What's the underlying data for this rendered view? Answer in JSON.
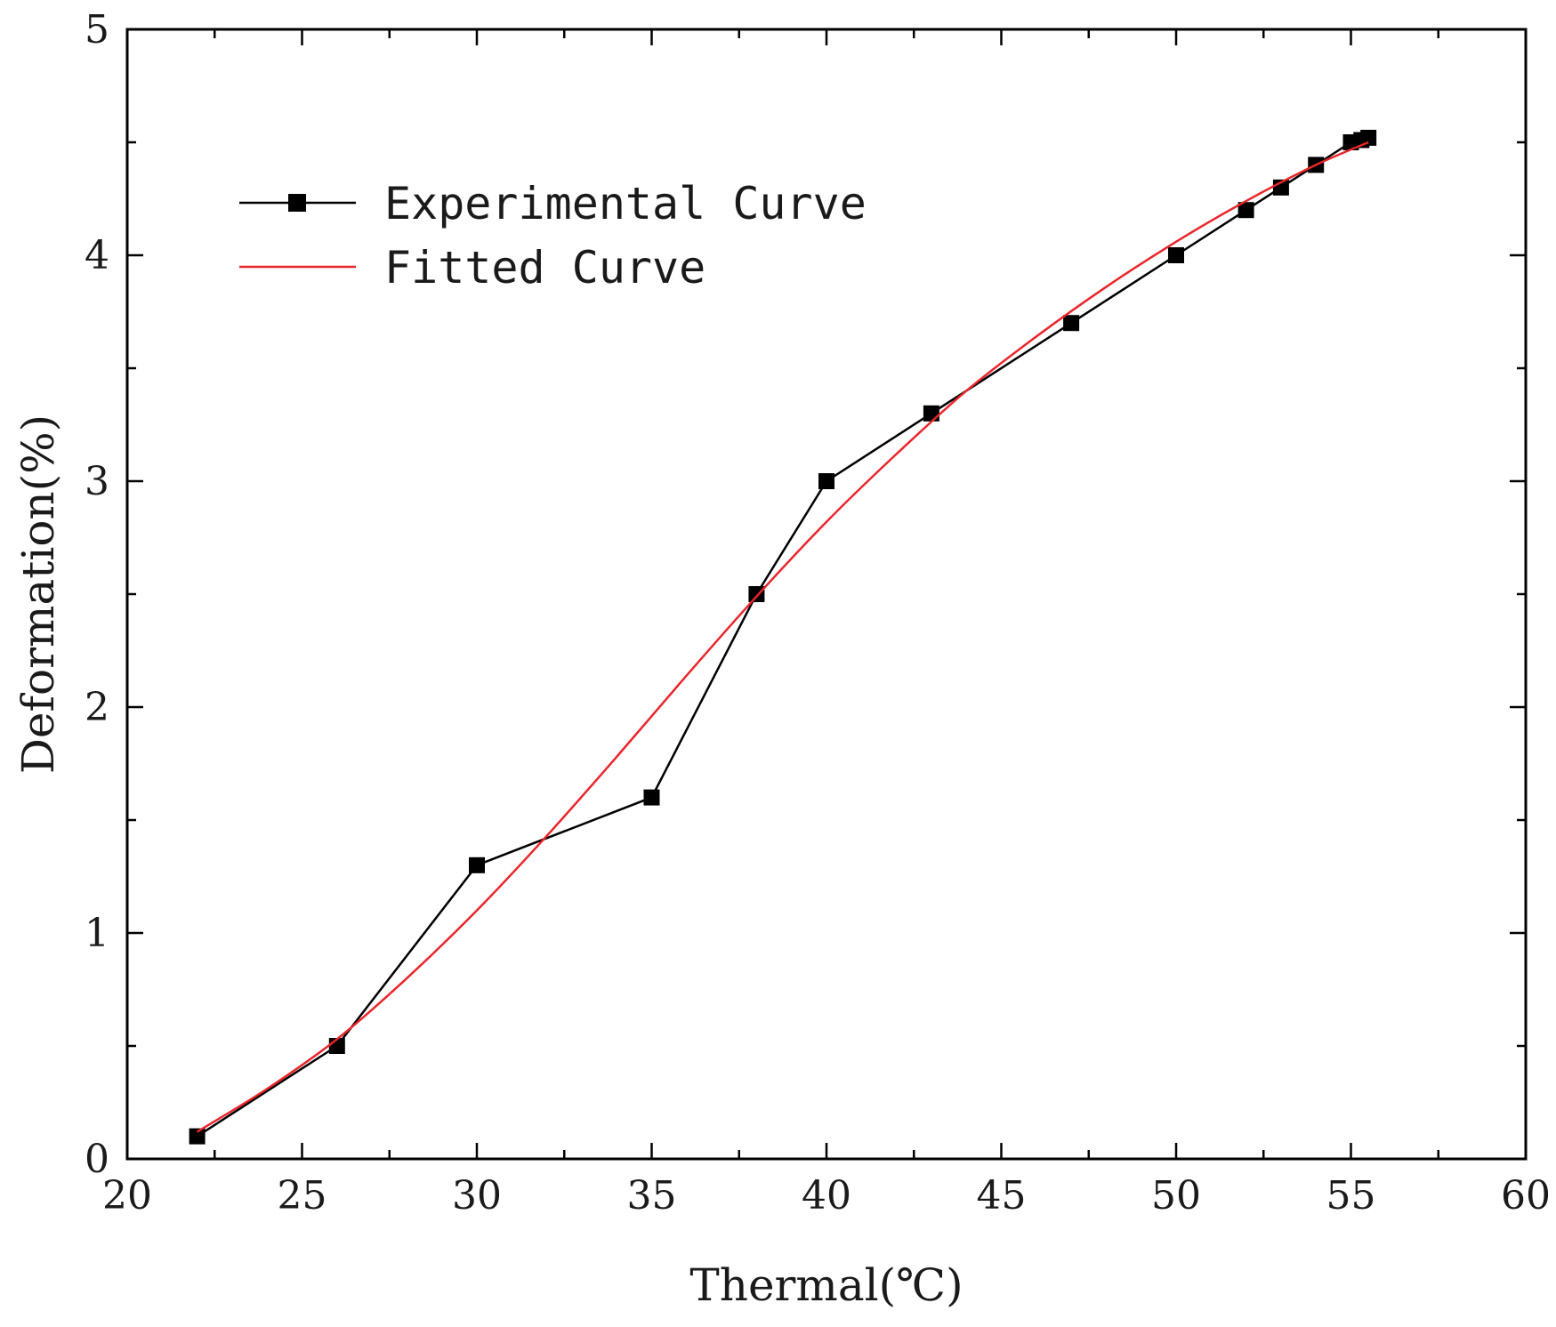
{
  "chart_data": {
    "type": "line",
    "title": "",
    "xlabel": "Thermal(℃)",
    "ylabel": "Deformation(%)",
    "xlim": [
      20,
      60
    ],
    "ylim": [
      0,
      5
    ],
    "xticks": [
      20,
      25,
      30,
      35,
      40,
      45,
      50,
      55,
      60
    ],
    "yticks": [
      0,
      1,
      2,
      3,
      4,
      5
    ],
    "grid": false,
    "legend_position": "top-left",
    "series": [
      {
        "name": "Experimental Curve",
        "color": "#000000",
        "marker": "square",
        "x": [
          22,
          26,
          30,
          35,
          38,
          40,
          43,
          47,
          50,
          52,
          53,
          54,
          55,
          55.3,
          55.5
        ],
        "y": [
          0.1,
          0.5,
          1.3,
          1.6,
          2.5,
          3.0,
          3.3,
          3.7,
          4.0,
          4.2,
          4.3,
          4.4,
          4.5,
          4.51,
          4.52
        ]
      },
      {
        "name": "Fitted Curve",
        "color": "#e8262c",
        "marker": "none",
        "x": [
          22,
          24,
          26,
          28,
          30,
          32,
          34,
          36,
          38,
          40,
          42,
          44,
          46,
          48,
          50,
          52,
          54,
          55.5
        ],
        "y": [
          0.12,
          0.31,
          0.53,
          0.8,
          1.1,
          1.43,
          1.78,
          2.14,
          2.49,
          2.82,
          3.12,
          3.4,
          3.64,
          3.86,
          4.06,
          4.24,
          4.4,
          4.5
        ]
      }
    ]
  }
}
